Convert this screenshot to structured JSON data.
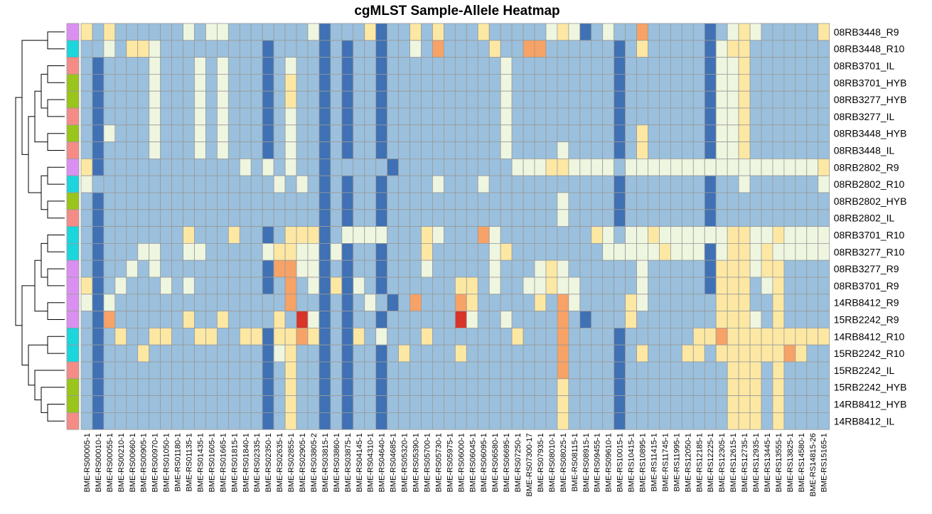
{
  "chart_data": {
    "type": "heatmap",
    "title": "cgMLST Sample-Allele Heatmap",
    "rows": [
      "08RB3448_R9",
      "08RB3448_R10",
      "08RB3701_IL",
      "08RB3701_HYB",
      "08RB3277_HYB",
      "08RB3277_IL",
      "08RB3448_HYB",
      "08RB3448_IL",
      "08RB2802_R9",
      "08RB2802_R10",
      "08RB2802_HYB",
      "08RB2802_IL",
      "08RB3701_R10",
      "08RB3277_R10",
      "08RB3277_R9",
      "08RB3701_R9",
      "14RB8412_R9",
      "15RB2242_R9",
      "14RB8412_R10",
      "15RB2242_R10",
      "15RB2242_IL",
      "15RB2242_HYB",
      "14RB8412_HYB",
      "14RB8412_IL"
    ],
    "columns": [
      "BME-RS00005-1",
      "BME-RS00010-1",
      "BME-RS00055-1",
      "BME-RS00210-1",
      "BME-RS00660-1",
      "BME-RS00905-1",
      "BME-RS00970-1",
      "BME-RS01050-1",
      "BME-RS01180-1",
      "BME-RS01135-1",
      "BME-RS01435-1",
      "BME-RS01605-1",
      "BME-RS01665-1",
      "BME-RS01815-1",
      "BME-RS01840-1",
      "BME-RS02335-1",
      "BME-RS02350-1",
      "BME-RS02635-1",
      "BME-RS02855-1",
      "BME-RS02905-1",
      "BME-RS03805-2",
      "BME-RS03815-1",
      "BME-RS03860-1",
      "BME-RS03875-1",
      "BME-RS04145-1",
      "BME-RS04310-1",
      "BME-RS04640-1",
      "BME-RS04685-1",
      "BME-RS05320-1",
      "BME-RS05390-1",
      "BME-RS05700-1",
      "BME-RS05730-1",
      "BME-RS05975-1",
      "BME-RS06000-1",
      "BME-RS06045-1",
      "BME-RS06095-1",
      "BME-RS06580-1",
      "BME-RS06695-1",
      "BME-RS07250-1",
      "BME-RS07300-17",
      "BME-RS07935-1",
      "BME-RS08010-1",
      "BME-RS08025-1",
      "BME-RS08115-1",
      "BME-RS08915-1",
      "BME-RS09455-1",
      "BME-RS09610-1",
      "BME-RS10015-1",
      "BME-RS10415-1",
      "BME-RS10895-1",
      "BME-RS11415-1",
      "BME-RS11745-1",
      "BME-RS11995-1",
      "BME-RS12050-1",
      "BME-RS12185-1",
      "BME-RS12225-1",
      "BME-RS12305-1",
      "BME-RS12615-1",
      "BME-RS12735-1",
      "BME-RS12935-1",
      "BME-RS13445-1",
      "BME-RS13555-1",
      "BME-RS13825-1",
      "BME-RS14580-1",
      "BME-RS14815-26",
      "BME-RS15165-1"
    ],
    "annotation_colors": [
      "#DA90F0",
      "#1DD5DC",
      "#F48C85",
      "#9AC51A",
      "#9AC51A",
      "#F48C85",
      "#9AC51A",
      "#F48C85",
      "#DA90F0",
      "#1DD5DC",
      "#9AC51A",
      "#F48C85",
      "#1DD5DC",
      "#1DD5DC",
      "#DA90F0",
      "#DA90F0",
      "#DA90F0",
      "#DA90F0",
      "#1DD5DC",
      "#1DD5DC",
      "#F48C85",
      "#9AC51A",
      "#9AC51A",
      "#F48C85"
    ],
    "palette": [
      "#3F71B4",
      "#9AC0DD",
      "#EEF6E0",
      "#FDE8A3",
      "#F7A266",
      "#D7342A"
    ],
    "special": {
      "0": {
        "0": 3,
        "2": 3,
        "9": 2,
        "11": 2,
        "12": 2,
        "20": 2,
        "25": 3,
        "29": 3,
        "31": 3,
        "35": 3,
        "41": 2,
        "42": 3,
        "43": 2,
        "44": 0,
        "46": 2,
        "49": 4,
        "57": 2,
        "58": 3,
        "59": 2,
        "65": 3
      },
      "1": {
        "2": 2,
        "4": 3,
        "5": 3,
        "6": 2,
        "29": 2,
        "31": 4,
        "36": 3,
        "39": 4,
        "40": 4,
        "49": 3,
        "56": 2,
        "57": 3,
        "58": 3
      },
      "2": {
        "6": 2,
        "10": 2,
        "12": 2,
        "18": 2,
        "37": 2,
        "56": 2,
        "57": 2,
        "58": 3
      },
      "3": {
        "6": 2,
        "10": 2,
        "12": 2,
        "18": 3,
        "37": 2,
        "56": 2,
        "57": 2,
        "58": 3
      },
      "4": {
        "6": 2,
        "10": 2,
        "12": 2,
        "18": 3,
        "37": 2,
        "56": 2,
        "57": 2,
        "58": 3
      },
      "5": {
        "6": 2,
        "10": 2,
        "12": 2,
        "18": 2,
        "37": 2,
        "56": 2,
        "57": 2,
        "58": 3
      },
      "6": {
        "2": 2,
        "6": 2,
        "10": 2,
        "12": 2,
        "18": 2,
        "37": 2,
        "49": 3,
        "56": 2,
        "57": 2,
        "58": 3
      },
      "7": {
        "6": 2,
        "10": 2,
        "12": 2,
        "18": 2,
        "37": 2,
        "42": 2,
        "49": 3,
        "56": 2,
        "57": 2,
        "58": 3
      },
      "8": {
        "0": 3,
        "14": 2,
        "16": 2,
        "18": 2,
        "27": 0,
        "38": 2,
        "39": 2,
        "40": 2,
        "41": 3,
        "42": 3,
        "43": 2,
        "44": 2,
        "45": 2,
        "46": 2,
        "48": 2,
        "49": 2,
        "50": 2,
        "51": 2,
        "52": 2,
        "53": 2,
        "54": 2,
        "55": 2,
        "56": 2,
        "57": 2,
        "58": 2,
        "59": 2,
        "60": 2,
        "61": 2,
        "62": 2,
        "63": 2,
        "64": 2,
        "65": 3
      },
      "9": {
        "0": 2,
        "17": 2,
        "19": 2,
        "31": 2,
        "35": 2,
        "58": 2,
        "65": 2
      },
      "10": {
        "42": 2
      },
      "11": {
        "42": 2
      },
      "12": {
        "9": 3,
        "13": 3,
        "18": 3,
        "19": 3,
        "20": 3,
        "23": 2,
        "24": 2,
        "25": 2,
        "26": 2,
        "30": 3,
        "31": 2,
        "35": 4,
        "36": 2,
        "45": 3,
        "46": 2,
        "48": 2,
        "49": 2,
        "50": 3,
        "51": 2,
        "52": 2,
        "53": 2,
        "54": 2,
        "55": 2,
        "56": 2,
        "57": 3,
        "58": 3,
        "59": 2,
        "60": 2,
        "61": 3,
        "62": 2,
        "63": 2,
        "64": 2,
        "65": 2
      },
      "13": {
        "5": 2,
        "6": 2,
        "9": 2,
        "10": 2,
        "16": 2,
        "17": 3,
        "18": 3,
        "19": 2,
        "20": 2,
        "22": 2,
        "30": 3,
        "36": 2,
        "37": 3,
        "46": 2,
        "47": 2,
        "48": 2,
        "49": 2,
        "50": 2,
        "51": 3,
        "52": 2,
        "53": 2,
        "54": 2,
        "56": 2,
        "57": 3,
        "58": 3,
        "59": 2,
        "60": 3,
        "61": 2,
        "62": 2,
        "63": 2,
        "64": 2,
        "65": 2
      },
      "14": {
        "4": 2,
        "6": 2,
        "17": 4,
        "18": 4,
        "19": 2,
        "20": 2,
        "30": 2,
        "36": 2,
        "40": 2,
        "41": 3,
        "42": 2,
        "49": 2,
        "56": 3,
        "57": 3,
        "58": 3,
        "59": 2,
        "60": 3,
        "61": 3
      },
      "15": {
        "0": 3,
        "3": 2,
        "7": 2,
        "9": 2,
        "18": 4,
        "20": 2,
        "22": 3,
        "24": 2,
        "33": 3,
        "34": 3,
        "36": 2,
        "39": 2,
        "40": 2,
        "41": 3,
        "42": 2,
        "43": 2,
        "49": 2,
        "56": 3,
        "57": 3,
        "58": 3,
        "60": 2,
        "61": 3
      },
      "16": {
        "0": 2,
        "2": 2,
        "18": 4,
        "25": 2,
        "27": 0,
        "29": 4,
        "33": 4,
        "34": 3,
        "40": 3,
        "42": 4,
        "43": 2,
        "48": 3,
        "49": 2,
        "56": 3,
        "57": 3,
        "58": 3,
        "61": 3
      },
      "17": {
        "2": 4,
        "9": 3,
        "12": 3,
        "17": 3,
        "19": 5,
        "20": 2,
        "33": 5,
        "34": 2,
        "37": 2,
        "42": 4,
        "44": 0,
        "48": 3,
        "56": 3,
        "57": 3,
        "58": 3,
        "59": 2,
        "61": 3
      },
      "18": {
        "3": 3,
        "6": 3,
        "7": 3,
        "10": 3,
        "11": 3,
        "14": 3,
        "15": 3,
        "17": 3,
        "18": 3,
        "19": 4,
        "20": 3,
        "24": 3,
        "26": 2,
        "30": 3,
        "38": 3,
        "42": 4,
        "54": 3,
        "55": 3,
        "56": 4,
        "57": 3,
        "58": 3,
        "59": 3,
        "60": 3,
        "61": 3,
        "62": 3,
        "63": 3,
        "64": 3,
        "65": 3
      },
      "19": {
        "5": 3,
        "17": 2,
        "18": 3,
        "28": 3,
        "33": 3,
        "42": 4,
        "49": 3,
        "53": 3,
        "54": 3,
        "56": 3,
        "57": 3,
        "58": 3,
        "59": 3,
        "60": 3,
        "61": 3,
        "62": 4,
        "63": 3
      },
      "20": {
        "18": 3,
        "42": 4,
        "57": 3,
        "58": 3,
        "59": 3,
        "61": 3
      },
      "21": {
        "18": 3,
        "42": 3,
        "57": 3,
        "58": 3,
        "59": 3,
        "61": 3
      },
      "22": {
        "18": 3,
        "42": 3,
        "57": 3,
        "58": 3,
        "59": 3,
        "61": 3
      },
      "23": {
        "18": 3,
        "42": 3,
        "57": 3,
        "58": 3,
        "59": 3,
        "61": 3
      }
    },
    "dark_columns": {
      "1": [
        2,
        3,
        4,
        5,
        6,
        7,
        8,
        10,
        11,
        12,
        13,
        14,
        15,
        16,
        17,
        18,
        19,
        20,
        21,
        22,
        23
      ],
      "16": [
        1,
        2,
        3,
        4,
        5,
        6,
        7,
        12,
        13,
        14,
        15,
        18,
        19,
        20,
        21,
        22,
        23
      ],
      "21": [
        0,
        1,
        2,
        3,
        4,
        5,
        6,
        7,
        8,
        9,
        10,
        11,
        12,
        13,
        14,
        15,
        16,
        17,
        18,
        19,
        20,
        21,
        22,
        23
      ],
      "23": [
        1,
        2,
        3,
        4,
        5,
        6,
        7,
        9,
        10,
        11,
        12,
        13,
        14,
        15,
        16,
        17,
        18,
        19,
        20,
        21,
        22,
        23
      ],
      "26": [
        0,
        1,
        2,
        3,
        4,
        5,
        6,
        7,
        9,
        10,
        11,
        12,
        13,
        14,
        15,
        17,
        18,
        19,
        20,
        21,
        22,
        23
      ],
      "47": [
        1,
        2,
        3,
        4,
        5,
        6,
        7,
        9,
        10,
        11,
        18,
        19,
        20,
        21,
        22,
        23
      ],
      "55": [
        0,
        1,
        2,
        3,
        4,
        5,
        6,
        7,
        9,
        10,
        11,
        12,
        13,
        14,
        15
      ]
    }
  }
}
